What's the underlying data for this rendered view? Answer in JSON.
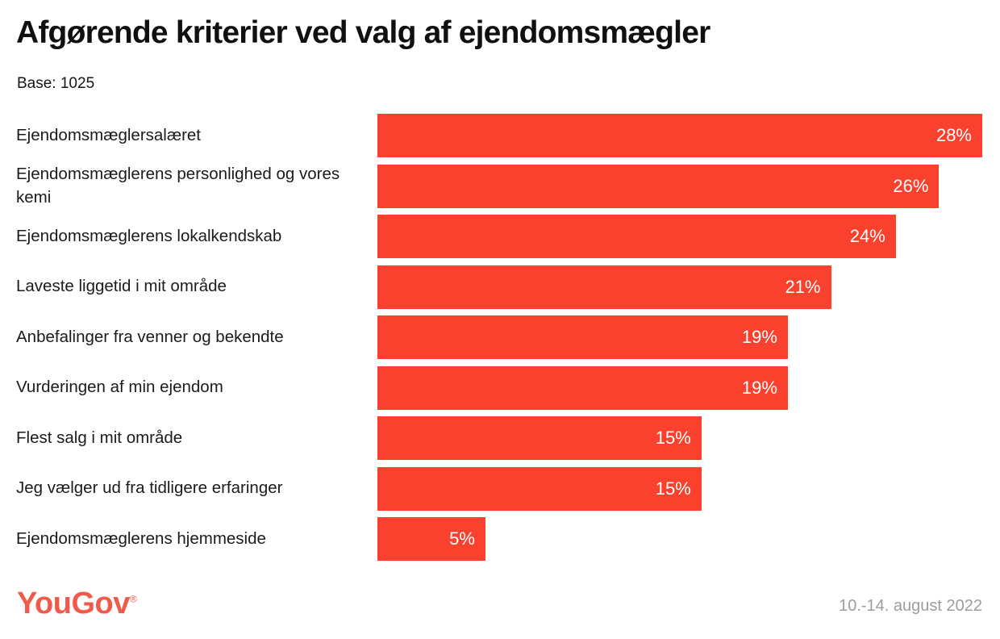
{
  "header": {
    "title": "Afgørende kriterier ved valg af ejendomsmægler",
    "base_label": "Base: 1025"
  },
  "chart_data": {
    "type": "bar",
    "orientation": "horizontal",
    "title": "Afgørende kriterier ved valg af ejendomsmægler",
    "base": 1025,
    "categories": [
      "Ejendomsmæglersalæret",
      "Ejendomsmæglerens personlighed og vores kemi",
      "Ejendomsmæglerens lokalkendskab",
      "Laveste liggetid i mit område",
      "Anbefalinger fra venner og bekendte",
      "Vurderingen af min ejendom",
      "Flest salg i mit område",
      "Jeg vælger ud fra tidligere erfaringer",
      "Ejendomsmæglerens hjemmeside"
    ],
    "values": [
      28,
      26,
      24,
      21,
      19,
      19,
      15,
      15,
      5
    ],
    "value_suffix": "%",
    "xlim": [
      0,
      28
    ],
    "grid": false,
    "legend": false,
    "value_labels_position": "inside-end"
  },
  "colors": {
    "bar": "#FA412D",
    "value_label": "#FFFFFF",
    "logo": "#F05A4B",
    "date_text": "#9B9EA0"
  },
  "footer": {
    "logo_text": "YouGov",
    "registered_mark": "®",
    "date_range": "10.-14. august 2022"
  }
}
